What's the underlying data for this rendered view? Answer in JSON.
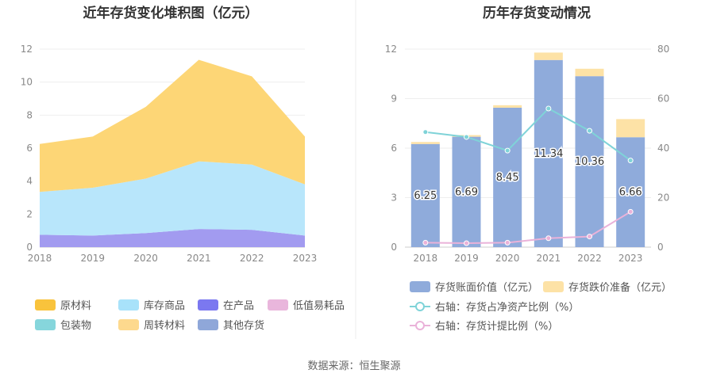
{
  "source_text": "数据来源：恒生聚源",
  "chart_data": [
    {
      "type": "area",
      "title": "近年存货变化堆积图（亿元）",
      "x": [
        "2018",
        "2019",
        "2020",
        "2021",
        "2022",
        "2023"
      ],
      "ylim": [
        0,
        12
      ],
      "yticks": [
        "0",
        "2",
        "4",
        "6",
        "8",
        "10",
        "12"
      ],
      "stacked": true,
      "grid": true,
      "legend_position": "bottom",
      "series": [
        {
          "name": "在产品",
          "color": "#a29bf0",
          "values": [
            0.75,
            0.7,
            0.85,
            1.1,
            1.05,
            0.7
          ]
        },
        {
          "name": "库存商品",
          "color": "#b8e6fb",
          "values": [
            2.6,
            2.9,
            3.3,
            4.1,
            3.95,
            3.1
          ]
        },
        {
          "name": "原材料",
          "color": "#fdd676",
          "values": [
            2.9,
            3.1,
            4.35,
            6.15,
            5.35,
            2.9
          ]
        }
      ],
      "legend": [
        {
          "name": "原材料",
          "color": "#f9c33c"
        },
        {
          "name": "库存商品",
          "color": "#a8e2fa"
        },
        {
          "name": "在产品",
          "color": "#7b78f0"
        },
        {
          "name": "低值易耗品",
          "color": "#e9b6dc"
        },
        {
          "name": "包装物",
          "color": "#86d6dc"
        },
        {
          "name": "周转材料",
          "color": "#fdd98e"
        },
        {
          "name": "其他存货",
          "color": "#8fa7d9"
        }
      ]
    },
    {
      "type": "bar",
      "title": "历年存货变动情况",
      "categories": [
        "2018",
        "2019",
        "2020",
        "2021",
        "2022",
        "2023"
      ],
      "ylim_left": [
        0,
        12
      ],
      "yticks_left": [
        "0",
        "3",
        "6",
        "9",
        "12"
      ],
      "ylim_right": [
        0,
        80
      ],
      "yticks_right": [
        "0",
        "20",
        "40",
        "60",
        "80"
      ],
      "grid": true,
      "legend_position": "bottom",
      "series": [
        {
          "name": "存货账面价值（亿元）",
          "axis": "left",
          "kind": "bar",
          "color": "#8fabdb",
          "values": [
            6.25,
            6.69,
            8.45,
            11.34,
            10.36,
            6.66
          ],
          "labels": [
            "6.25",
            "6.69",
            "8.45",
            "11.34",
            "10.36",
            "6.66"
          ]
        },
        {
          "name": "存货跌价准备（亿元）",
          "axis": "left",
          "kind": "bar-stack",
          "color": "#fde2a6",
          "values": [
            0.12,
            0.1,
            0.15,
            0.45,
            0.45,
            1.1
          ]
        },
        {
          "name": "右轴：存货占净资产比例（%）",
          "axis": "right",
          "kind": "line",
          "color": "#7fd3d8",
          "values": [
            46.5,
            44.5,
            39.0,
            56.0,
            47.0,
            35.0
          ]
        },
        {
          "name": "右轴：存货计提比例（%）",
          "axis": "right",
          "kind": "line",
          "color": "#eab2d9",
          "values": [
            1.8,
            1.6,
            1.8,
            3.6,
            4.3,
            14.3
          ]
        }
      ]
    }
  ]
}
